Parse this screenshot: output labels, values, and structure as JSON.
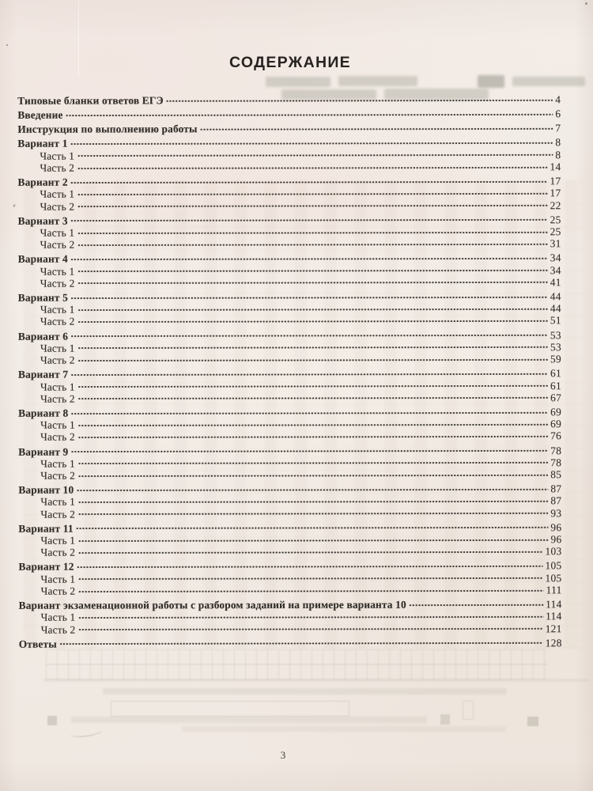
{
  "page": {
    "title": "СОДЕРЖАНИЕ",
    "page_number": "3"
  },
  "theme": {
    "paper_color": "#f2ebe5",
    "ink_color": "#312d29"
  },
  "toc": {
    "entries": [
      {
        "label": "Типовые бланки ответов ЕГЭ",
        "page": "4",
        "level": 0
      },
      {
        "label": "Введение",
        "page": "6",
        "level": 0
      },
      {
        "label": "Инструкция по выполнению работы",
        "page": "7",
        "level": 0
      },
      {
        "label": "Вариант 1",
        "page": "8",
        "level": 0
      },
      {
        "label": "Часть 1",
        "page": "8",
        "level": 1
      },
      {
        "label": "Часть 2",
        "page": "14",
        "level": 1
      },
      {
        "label": "Вариант 2",
        "page": "17",
        "level": 0
      },
      {
        "label": "Часть 1",
        "page": "17",
        "level": 1
      },
      {
        "label": "Часть 2",
        "page": "22",
        "level": 1
      },
      {
        "label": "Вариант 3",
        "page": "25",
        "level": 0
      },
      {
        "label": "Часть 1",
        "page": "25",
        "level": 1
      },
      {
        "label": "Часть 2",
        "page": "31",
        "level": 1
      },
      {
        "label": "Вариант 4",
        "page": "34",
        "level": 0
      },
      {
        "label": "Часть 1",
        "page": "34",
        "level": 1
      },
      {
        "label": "Часть 2",
        "page": "41",
        "level": 1
      },
      {
        "label": "Вариант 5",
        "page": "44",
        "level": 0
      },
      {
        "label": "Часть 1",
        "page": "44",
        "level": 1
      },
      {
        "label": "Часть 2",
        "page": "51",
        "level": 1
      },
      {
        "label": "Вариант 6",
        "page": "53",
        "level": 0
      },
      {
        "label": "Часть 1",
        "page": "53",
        "level": 1
      },
      {
        "label": "Часть 2",
        "page": "59",
        "level": 1
      },
      {
        "label": "Вариант 7",
        "page": "61",
        "level": 0
      },
      {
        "label": "Часть 1",
        "page": "61",
        "level": 1
      },
      {
        "label": "Часть 2",
        "page": "67",
        "level": 1
      },
      {
        "label": "Вариант 8",
        "page": "69",
        "level": 0
      },
      {
        "label": "Часть 1",
        "page": "69",
        "level": 1
      },
      {
        "label": "Часть 2",
        "page": "76",
        "level": 1
      },
      {
        "label": "Вариант 9",
        "page": "78",
        "level": 0
      },
      {
        "label": "Часть 1",
        "page": "78",
        "level": 1
      },
      {
        "label": "Часть 2",
        "page": "85",
        "level": 1
      },
      {
        "label": "Вариант 10",
        "page": "87",
        "level": 0
      },
      {
        "label": "Часть 1",
        "page": "87",
        "level": 1
      },
      {
        "label": "Часть 2",
        "page": "93",
        "level": 1
      },
      {
        "label": "Вариант 11",
        "page": "96",
        "level": 0
      },
      {
        "label": "Часть 1",
        "page": "96",
        "level": 1
      },
      {
        "label": "Часть 2",
        "page": "103",
        "level": 1
      },
      {
        "label": "Вариант 12",
        "page": "105",
        "level": 0
      },
      {
        "label": "Часть 1",
        "page": "105",
        "level": 1
      },
      {
        "label": "Часть 2",
        "page": "111",
        "level": 1
      },
      {
        "label": "Вариант экзаменационной работы с разбором заданий на примере варианта 10",
        "page": "114",
        "level": 0
      },
      {
        "label": "Часть 1",
        "page": "114",
        "level": 1
      },
      {
        "label": "Часть 2",
        "page": "121",
        "level": 1
      },
      {
        "label": "Ответы",
        "page": "128",
        "level": 0
      }
    ]
  }
}
